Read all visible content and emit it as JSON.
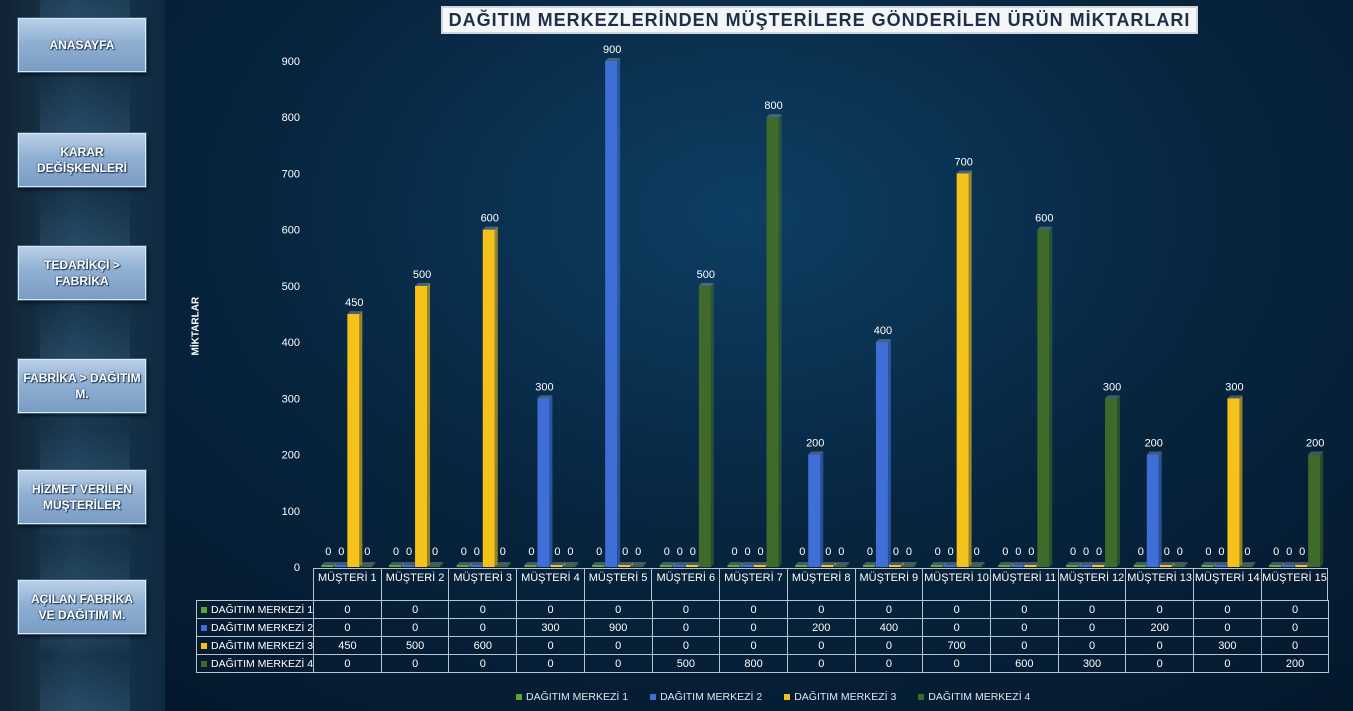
{
  "sidebar": {
    "buttons": [
      {
        "label": "ANASAYFA"
      },
      {
        "label": "KARAR DEĞİŞKENLERİ"
      },
      {
        "label": "TEDARİKÇİ > FABRİKA"
      },
      {
        "label": "FABRİKA > DAĞITIM M."
      },
      {
        "label": "HİZMET VERİLEN MÜŞTERİLER"
      },
      {
        "label": "AÇILAN FABRİKA VE DAĞITIM M."
      }
    ]
  },
  "colors": {
    "series1": "#5aa832",
    "series2": "#3f6fd6",
    "series3": "#f5c21b",
    "series4": "#3f6a2a"
  },
  "chart_data": {
    "type": "bar",
    "title": "DAĞITIM MERKEZLERİNDEN MÜŞTERİLERE GÖNDERİLEN ÜRÜN MİKTARLARI",
    "ylabel": "MİKTARLAR",
    "ylim": [
      0,
      900
    ],
    "yticks": [
      "0",
      "100",
      "200",
      "300",
      "400",
      "500",
      "600",
      "700",
      "800",
      "900"
    ],
    "categories": [
      "MÜŞTERİ 1",
      "MÜŞTERİ 2",
      "MÜŞTERİ 3",
      "MÜŞTERİ 4",
      "MÜŞTERİ 5",
      "MÜŞTERİ 6",
      "MÜŞTERİ 7",
      "MÜŞTERİ 8",
      "MÜŞTERİ 9",
      "MÜŞTERİ 10",
      "MÜŞTERİ 11",
      "MÜŞTERİ 12",
      "MÜŞTERİ 13",
      "MÜŞTERİ 14",
      "MÜŞTERİ 15"
    ],
    "series": [
      {
        "name": "DAĞITIM MERKEZİ 1",
        "values": [
          0,
          0,
          0,
          0,
          0,
          0,
          0,
          0,
          0,
          0,
          0,
          0,
          0,
          0,
          0
        ]
      },
      {
        "name": "DAĞITIM MERKEZİ 2",
        "values": [
          0,
          0,
          0,
          300,
          900,
          0,
          0,
          200,
          400,
          0,
          0,
          0,
          200,
          0,
          0
        ]
      },
      {
        "name": "DAĞITIM MERKEZİ 3",
        "values": [
          450,
          500,
          600,
          0,
          0,
          0,
          0,
          0,
          0,
          700,
          0,
          0,
          0,
          300,
          0
        ]
      },
      {
        "name": "DAĞITIM MERKEZİ 4",
        "values": [
          0,
          0,
          0,
          0,
          0,
          500,
          800,
          0,
          0,
          0,
          600,
          300,
          0,
          0,
          200
        ]
      }
    ],
    "legend": "bottom",
    "data_table": true
  }
}
